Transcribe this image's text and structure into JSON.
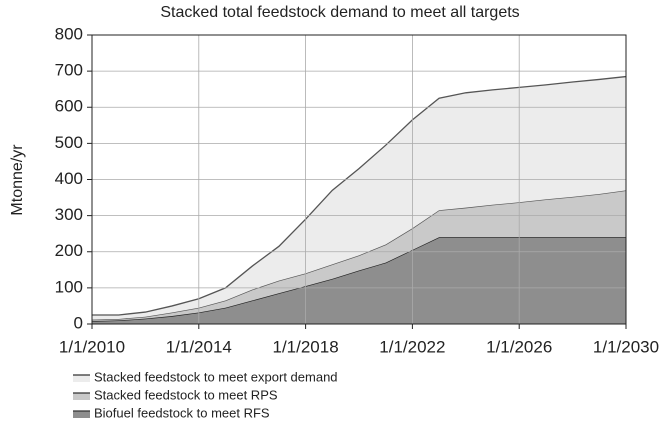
{
  "chart_data": {
    "type": "stacked_area",
    "title": "Stacked total feedstock demand to meet all targets",
    "y_label": "Mtonne/yr",
    "x": [
      "2010-01-01",
      "2011-01-01",
      "2012-01-01",
      "2013-01-01",
      "2014-01-01",
      "2015-01-01",
      "2016-01-01",
      "2017-01-01",
      "2018-01-01",
      "2019-01-01",
      "2020-01-01",
      "2021-01-01",
      "2022-01-01",
      "2023-01-01",
      "2024-01-01",
      "2025-01-01",
      "2026-01-01",
      "2027-01-01",
      "2028-01-01",
      "2029-01-01",
      "2030-01-01"
    ],
    "series": [
      {
        "name": "Biofuel feedstock to meet RFS",
        "color": "#8e8e8e",
        "values": [
          8,
          10,
          15,
          22,
          32,
          45,
          65,
          85,
          105,
          125,
          148,
          170,
          205,
          240,
          240,
          240,
          240,
          240,
          240,
          240,
          240
        ]
      },
      {
        "name": "Stacked feedstock to meet RPS",
        "color": "#c9c9c9",
        "values": [
          4,
          4,
          5,
          10,
          13,
          20,
          30,
          35,
          35,
          40,
          42,
          50,
          60,
          75,
          82,
          90,
          97,
          105,
          112,
          120,
          130
        ]
      },
      {
        "name": "Stacked feedstock to meet export demand",
        "color": "#ececec",
        "values": [
          13,
          11,
          13,
          18,
          25,
          35,
          65,
          95,
          150,
          205,
          240,
          275,
          300,
          310,
          318,
          318,
          318,
          317,
          318,
          317,
          315
        ]
      }
    ],
    "xlim": [
      "2010-01-01",
      "2030-01-01"
    ],
    "xticks": [
      {
        "value": "2010-01-01",
        "label": "1/1/2010"
      },
      {
        "value": "2014-01-01",
        "label": "1/1/2014"
      },
      {
        "value": "2018-01-01",
        "label": "1/1/2018"
      },
      {
        "value": "2022-01-01",
        "label": "1/1/2022"
      },
      {
        "value": "2026-01-01",
        "label": "1/1/2026"
      },
      {
        "value": "2030-01-01",
        "label": "1/1/2030"
      }
    ],
    "ylim": [
      0,
      800
    ],
    "yticks": [
      0,
      100,
      200,
      300,
      400,
      500,
      600,
      700,
      800
    ],
    "grid": true,
    "legend": "bottom"
  }
}
